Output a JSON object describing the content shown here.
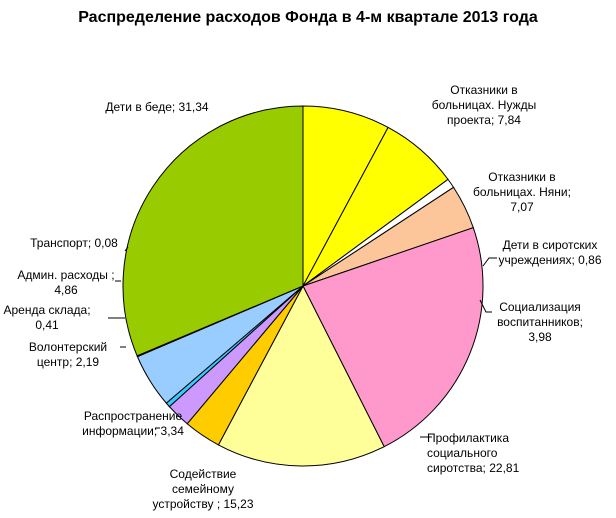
{
  "chart_data": {
    "type": "pie",
    "title": "Распределение расходов Фонда в 4-м квартале 2013 года",
    "slices": [
      {
        "label": [
          "Отказники в",
          "больницах. Нужды",
          "проекта; 7,84"
        ],
        "value": 7.84,
        "color": "#ffff00"
      },
      {
        "label": [
          "Отказники в",
          "больницах. Няни;",
          "7,07"
        ],
        "value": 7.07,
        "color": "#ffff00"
      },
      {
        "label": [
          "Дети в сиротских",
          "учреждениях; 0,86"
        ],
        "value": 0.86,
        "color": "#ffffff"
      },
      {
        "label": [
          "Социализация",
          "воспитанников;",
          "3,98"
        ],
        "value": 3.98,
        "color": "#fcc59a"
      },
      {
        "label": [
          "Профилактика",
          "социального",
          "сиротства; 22,81"
        ],
        "value": 22.81,
        "color": "#ff99cc"
      },
      {
        "label": [
          "Содействие",
          "семейному",
          "устройству ; 15,23"
        ],
        "value": 15.23,
        "color": "#ffff99"
      },
      {
        "label": [
          "Распространение",
          "информации; 3,34"
        ],
        "value": 3.34,
        "color": "#ffcc00"
      },
      {
        "label": [
          "Волонтерский",
          "центр; 2,19"
        ],
        "value": 2.19,
        "color": "#cc99ff"
      },
      {
        "label": [
          "Аренда склада;",
          "0,41"
        ],
        "value": 0.41,
        "color": "#33ccff"
      },
      {
        "label": [
          "Админ. расходы ;",
          "4,86"
        ],
        "value": 4.86,
        "color": "#99ccff"
      },
      {
        "label": [
          "Транспорт; 0,08"
        ],
        "value": 0.08,
        "color": "#000080"
      },
      {
        "label": [
          "Дети в беде; 31,34"
        ],
        "value": 31.34,
        "color": "#99cc00"
      }
    ],
    "start": "top",
    "direction": "clockwise",
    "legend": "none"
  }
}
